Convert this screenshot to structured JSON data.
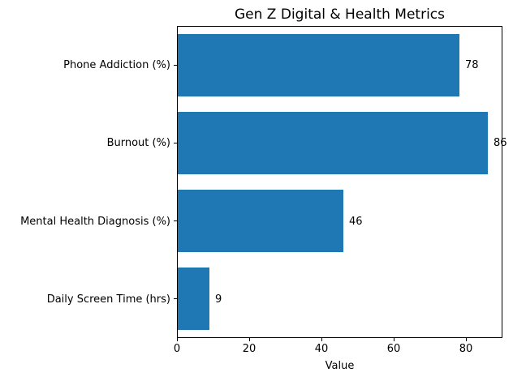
{
  "chart_data": {
    "type": "bar",
    "orientation": "horizontal",
    "title": "Gen Z Digital & Health Metrics",
    "xlabel": "Value",
    "ylabel": "",
    "categories": [
      "Phone Addiction (%)",
      "Burnout (%)",
      "Mental Health Diagnosis (%)",
      "Daily Screen Time (hrs)"
    ],
    "values": [
      78,
      86,
      46,
      9
    ],
    "value_labels": [
      "78",
      "86",
      "46",
      "9"
    ],
    "xlim": [
      0,
      90
    ],
    "xticks": [
      0,
      20,
      40,
      60,
      80
    ],
    "grid": false,
    "legend": "none",
    "bar_color": "#1f77b4",
    "text_color": "#000000"
  }
}
